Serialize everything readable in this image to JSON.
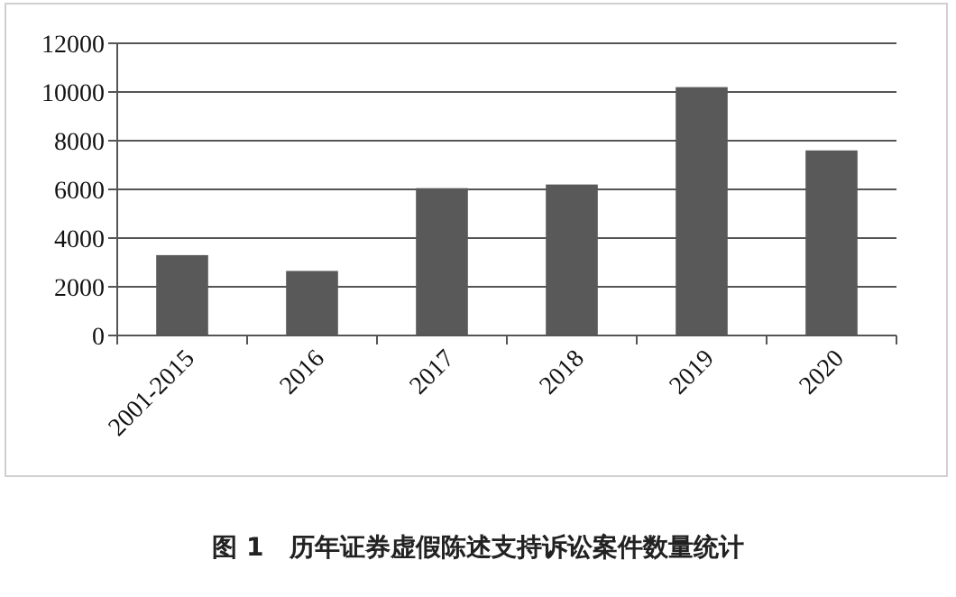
{
  "chart_data": {
    "type": "bar",
    "title": "图 1　历年证券虚假陈述支持诉讼案件数量统计",
    "categories": [
      "2001-2015",
      "2016",
      "2017",
      "2018",
      "2019",
      "2020"
    ],
    "values": [
      3300,
      2650,
      6050,
      6200,
      10200,
      7600
    ],
    "color": "#595959",
    "ylim": [
      0,
      12000
    ],
    "yticks": [
      0,
      2000,
      4000,
      6000,
      8000,
      10000,
      12000
    ],
    "grid": "y"
  }
}
